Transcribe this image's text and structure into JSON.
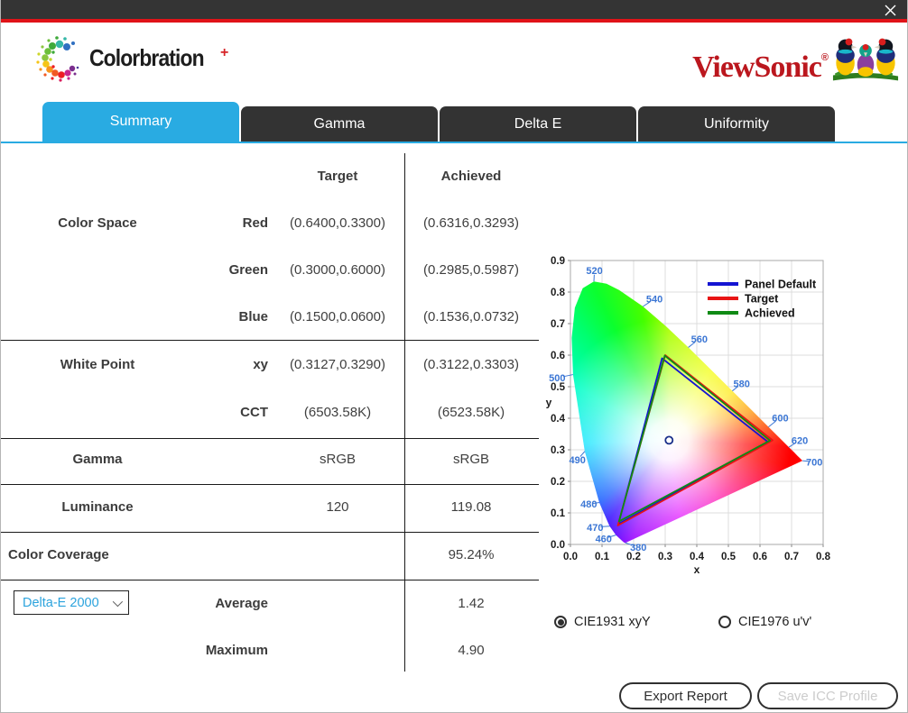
{
  "titlebar": {
    "close": "✕"
  },
  "brand": {
    "app_name": "Colorbration",
    "app_plus": "+",
    "vendor": "ViewSonic",
    "registered": "®"
  },
  "tabs": [
    {
      "label": "Summary",
      "active": true
    },
    {
      "label": "Gamma",
      "active": false
    },
    {
      "label": "Delta E",
      "active": false
    },
    {
      "label": "Uniformity",
      "active": false
    }
  ],
  "table": {
    "headers": {
      "target": "Target",
      "achieved": "Achieved"
    },
    "rows": [
      {
        "section": "Color Space",
        "sub": "Red",
        "target": "(0.6400,0.3300)",
        "achieved": "(0.6316,0.3293)"
      },
      {
        "sub": "Green",
        "target": "(0.3000,0.6000)",
        "achieved": "(0.2985,0.5987)"
      },
      {
        "sub": "Blue",
        "target": "(0.1500,0.0600)",
        "achieved": "(0.1536,0.0732)"
      },
      {
        "section": "White Point",
        "sub": "xy",
        "target": "(0.3127,0.3290)",
        "achieved": "(0.3122,0.3303)"
      },
      {
        "sub": "CCT",
        "target": "(6503.58K)",
        "achieved": "(6523.58K)"
      },
      {
        "section": "Gamma",
        "target": "sRGB",
        "achieved": "sRGB"
      },
      {
        "section": "Luminance",
        "target": "120",
        "achieved": "119.08"
      },
      {
        "section": "Color Coverage",
        "achieved": "95.24%"
      },
      {
        "sub": "Average",
        "achieved": "1.42"
      },
      {
        "sub": "Maximum",
        "achieved": "4.90"
      }
    ]
  },
  "delta_e_selector": {
    "value": "Delta-E 2000"
  },
  "cie_options": [
    {
      "label": "CIE1931 xyY",
      "selected": true
    },
    {
      "label": "CIE1976 u'v'",
      "selected": false
    }
  ],
  "actions": {
    "export_label": "Export Report",
    "save_label": "Save ICC Profile",
    "save_enabled": false
  },
  "chart_data": {
    "type": "scatter",
    "title": "CIE1931 xy chromaticity diagram",
    "xlabel": "x",
    "ylabel": "y",
    "xlim": [
      0,
      0.8
    ],
    "ylim": [
      0,
      0.9
    ],
    "tick_step": 0.1,
    "grid": true,
    "legend_position": "top-right",
    "series": [
      {
        "name": "Panel Default",
        "color": "#1414d2",
        "vertices": [
          [
            0.625,
            0.325
          ],
          [
            0.29,
            0.59
          ],
          [
            0.152,
            0.065
          ]
        ]
      },
      {
        "name": "Target",
        "color": "#e81414",
        "vertices": [
          [
            0.64,
            0.33
          ],
          [
            0.3,
            0.6
          ],
          [
            0.15,
            0.06
          ]
        ]
      },
      {
        "name": "Achieved",
        "color": "#0f8a14",
        "vertices": [
          [
            0.6316,
            0.3293
          ],
          [
            0.2985,
            0.5987
          ],
          [
            0.1536,
            0.0732
          ]
        ]
      }
    ],
    "white_point": [
      0.3122,
      0.3303
    ],
    "wavelength_labels": [
      {
        "text": "380",
        "label": [
          0.215,
          -0.008
        ],
        "locus": [
          0.1741,
          0.005
        ]
      },
      {
        "text": "460",
        "label": [
          0.105,
          0.018
        ],
        "locus": [
          0.144,
          0.0297
        ]
      },
      {
        "text": "470",
        "label": [
          0.078,
          0.055
        ],
        "locus": [
          0.1241,
          0.0578
        ]
      },
      {
        "text": "480",
        "label": [
          0.058,
          0.128
        ],
        "locus": [
          0.0913,
          0.1327
        ]
      },
      {
        "text": "490",
        "label": [
          0.022,
          0.268
        ],
        "locus": [
          0.0454,
          0.295
        ]
      },
      {
        "text": "500",
        "label": [
          -0.042,
          0.528
        ],
        "locus": [
          0.0082,
          0.5384
        ]
      },
      {
        "text": "520",
        "label": [
          0.076,
          0.868
        ],
        "locus": [
          0.0743,
          0.8338
        ]
      },
      {
        "text": "540",
        "label": [
          0.266,
          0.778
        ],
        "locus": [
          0.2296,
          0.7543
        ]
      },
      {
        "text": "560",
        "label": [
          0.408,
          0.652
        ],
        "locus": [
          0.3731,
          0.6245
        ]
      },
      {
        "text": "580",
        "label": [
          0.542,
          0.51
        ],
        "locus": [
          0.5125,
          0.4866
        ]
      },
      {
        "text": "600",
        "label": [
          0.664,
          0.402
        ],
        "locus": [
          0.627,
          0.3725
        ]
      },
      {
        "text": "620",
        "label": [
          0.726,
          0.33
        ],
        "locus": [
          0.6915,
          0.3083
        ]
      },
      {
        "text": "700",
        "label": [
          0.772,
          0.262
        ],
        "locus": [
          0.7347,
          0.2653
        ]
      }
    ]
  }
}
